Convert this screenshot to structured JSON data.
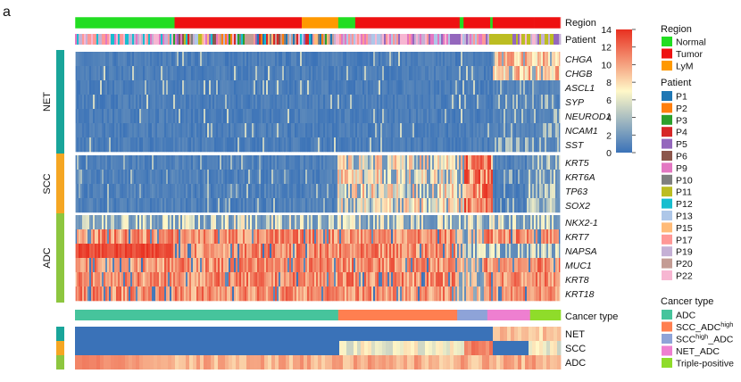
{
  "panel_label": "a",
  "colors": {
    "normal": "#22dd22",
    "tumor": "#ee1111",
    "lym": "#ff9900",
    "heat_low": "#3a72b8",
    "heat_mid": "#fff8c8",
    "heat_high": "#e83020",
    "net": "#19a59a",
    "scc": "#f5a623",
    "adc": "#8dc63f"
  },
  "legend": {
    "region_title": "Region",
    "region_items": [
      {
        "label": "Normal",
        "color": "#22dd22"
      },
      {
        "label": "Tumor",
        "color": "#ee1111"
      },
      {
        "label": "LyM",
        "color": "#ff9900"
      }
    ],
    "patient_title": "Patient",
    "patient_items": [
      {
        "label": "P1",
        "color": "#1f77b4"
      },
      {
        "label": "P2",
        "color": "#ff7f0e"
      },
      {
        "label": "P3",
        "color": "#2ca02c"
      },
      {
        "label": "P4",
        "color": "#d62728"
      },
      {
        "label": "P5",
        "color": "#9467bd"
      },
      {
        "label": "P6",
        "color": "#8c564b"
      },
      {
        "label": "P9",
        "color": "#e377c2"
      },
      {
        "label": "P10",
        "color": "#7f7f7f"
      },
      {
        "label": "P11",
        "color": "#bcbd22"
      },
      {
        "label": "P12",
        "color": "#17becf"
      },
      {
        "label": "P13",
        "color": "#aec7e8"
      },
      {
        "label": "P15",
        "color": "#ffbb78"
      },
      {
        "label": "P17",
        "color": "#ff9896"
      },
      {
        "label": "P19",
        "color": "#c5b0d5"
      },
      {
        "label": "P20",
        "color": "#c49c94"
      },
      {
        "label": "P22",
        "color": "#f7b6d2"
      }
    ],
    "cancer_title": "Cancer type",
    "cancer_items": [
      {
        "label": "ADC",
        "sup": "",
        "suffix": "",
        "color": "#46c49c"
      },
      {
        "label": "SCC_ADC",
        "sup": "high",
        "suffix": "",
        "color": "#ff7f50"
      },
      {
        "label": "SCC",
        "sup": "high",
        "suffix": "_ADC",
        "color": "#8ea3d8"
      },
      {
        "label": "NET_ADC",
        "sup": "",
        "suffix": "",
        "color": "#ee7fd0"
      },
      {
        "label": "Triple-positive",
        "sup": "",
        "suffix": "",
        "color": "#8fdc2a"
      }
    ]
  },
  "chart_data": {
    "type": "heatmap",
    "title": "",
    "color_scale": {
      "min": 0,
      "max": 14,
      "ticks": [
        0,
        2,
        4,
        6,
        8,
        10,
        12,
        14
      ]
    },
    "annotation_rows": [
      "Region",
      "Patient"
    ],
    "region_segments": [
      {
        "region": "Normal",
        "fraction": 0.205
      },
      {
        "region": "Tumor",
        "fraction": 0.262
      },
      {
        "region": "LyM",
        "fraction": 0.075
      },
      {
        "region": "Normal",
        "fraction": 0.035
      },
      {
        "region": "Tumor",
        "fraction": 0.215
      },
      {
        "region": "Normal",
        "fraction": 0.008
      },
      {
        "region": "Tumor",
        "fraction": 0.055
      },
      {
        "region": "Normal",
        "fraction": 0.005
      },
      {
        "region": "Tumor",
        "fraction": 0.085
      },
      {
        "region": "Tumor",
        "fraction": 0.055
      }
    ],
    "gene_groups": [
      {
        "name": "NET",
        "genes": [
          "CHGA",
          "CHGB",
          "ASCL1",
          "SYP",
          "NEUROD1",
          "NCAM1",
          "SST"
        ]
      },
      {
        "name": "SCC",
        "genes": [
          "KRT5",
          "KRT6A",
          "TP63",
          "SOX2"
        ]
      },
      {
        "name": "ADC",
        "genes": [
          "NKX2-1",
          "KRT7",
          "NAPSA",
          "MUC1",
          "KRT8",
          "KRT18"
        ]
      }
    ],
    "cancer_type_label": "Cancer type",
    "cancer_type_segments": [
      {
        "type": "ADC",
        "fraction": 0.542
      },
      {
        "type": "SCC_ADC_high",
        "fraction": 0.245
      },
      {
        "type": "SCC_high_ADC",
        "fraction": 0.062
      },
      {
        "type": "NET_ADC",
        "fraction": 0.088
      },
      {
        "type": "Triple-positive",
        "fraction": 0.063
      }
    ],
    "score_rows": [
      "NET",
      "SCC",
      "ADC"
    ]
  }
}
